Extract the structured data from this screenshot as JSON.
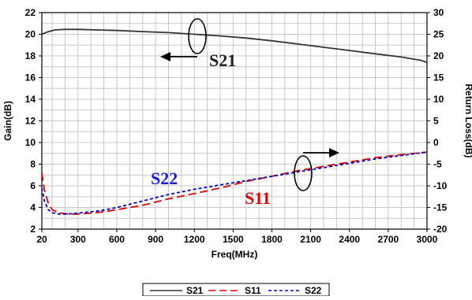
{
  "chart_data": {
    "type": "line",
    "xlabel": "Freq(MHz)",
    "ylabel_left": "Gain(dB)",
    "ylabel_right": "Return Loss(dB)",
    "xlim": [
      20,
      3000
    ],
    "ylim_left": [
      2,
      22
    ],
    "ylim_right": [
      -20,
      30
    ],
    "x_ticks": [
      "20",
      "300",
      "600",
      "900",
      "1200",
      "1500",
      "1800",
      "2100",
      "2400",
      "2700",
      "3000"
    ],
    "y_left_ticks": [
      "2",
      "4",
      "6",
      "8",
      "10",
      "12",
      "14",
      "16",
      "18",
      "20",
      "22"
    ],
    "y_right_ticks": [
      "-20",
      "-15",
      "-10",
      "-5",
      "0",
      "5",
      "10",
      "15",
      "20",
      "25",
      "30"
    ],
    "grid": true,
    "legend_position": "bottom",
    "series": [
      {
        "name": "S21",
        "axis": "left",
        "color": "#333333",
        "style": "solid",
        "x": [
          20,
          60,
          120,
          200,
          300,
          450,
          600,
          800,
          1000,
          1200,
          1400,
          1600,
          1800,
          2000,
          2200,
          2400,
          2600,
          2800,
          2950,
          3000
        ],
        "y": [
          20.0,
          20.2,
          20.4,
          20.45,
          20.45,
          20.4,
          20.35,
          20.25,
          20.15,
          20.0,
          19.85,
          19.65,
          19.4,
          19.1,
          18.8,
          18.5,
          18.2,
          17.9,
          17.6,
          17.4
        ]
      },
      {
        "name": "S11",
        "axis": "right",
        "color": "#e00000",
        "style": "dashed",
        "x": [
          20,
          40,
          70,
          100,
          150,
          220,
          300,
          400,
          500,
          600,
          800,
          1000,
          1200,
          1400,
          1600,
          1800,
          2000,
          2200,
          2400,
          2600,
          2800,
          3000
        ],
        "y": [
          -7.0,
          -11.0,
          -14.0,
          -15.5,
          -16.2,
          -16.5,
          -16.5,
          -16.3,
          -16.0,
          -15.5,
          -14.5,
          -13.0,
          -11.8,
          -10.5,
          -9.0,
          -7.8,
          -6.5,
          -5.5,
          -4.5,
          -3.5,
          -2.8,
          -2.2
        ]
      },
      {
        "name": "S22",
        "axis": "right",
        "color": "#0000cc",
        "style": "dotted",
        "x": [
          20,
          40,
          70,
          100,
          150,
          220,
          300,
          400,
          500,
          600,
          800,
          1000,
          1200,
          1400,
          1600,
          1800,
          2000,
          2200,
          2400,
          2600,
          2800,
          3000
        ],
        "y": [
          -10.5,
          -13.5,
          -15.5,
          -16.2,
          -16.5,
          -16.5,
          -16.3,
          -16.0,
          -15.6,
          -15.0,
          -13.5,
          -12.0,
          -10.8,
          -9.8,
          -8.8,
          -7.8,
          -6.8,
          -5.8,
          -4.8,
          -3.8,
          -3.0,
          -2.2
        ]
      }
    ]
  },
  "annotations": {
    "s21": "S21",
    "s11": "S11",
    "s22": "S22"
  },
  "legend": {
    "items": [
      "S21",
      "S11",
      "S22"
    ]
  }
}
